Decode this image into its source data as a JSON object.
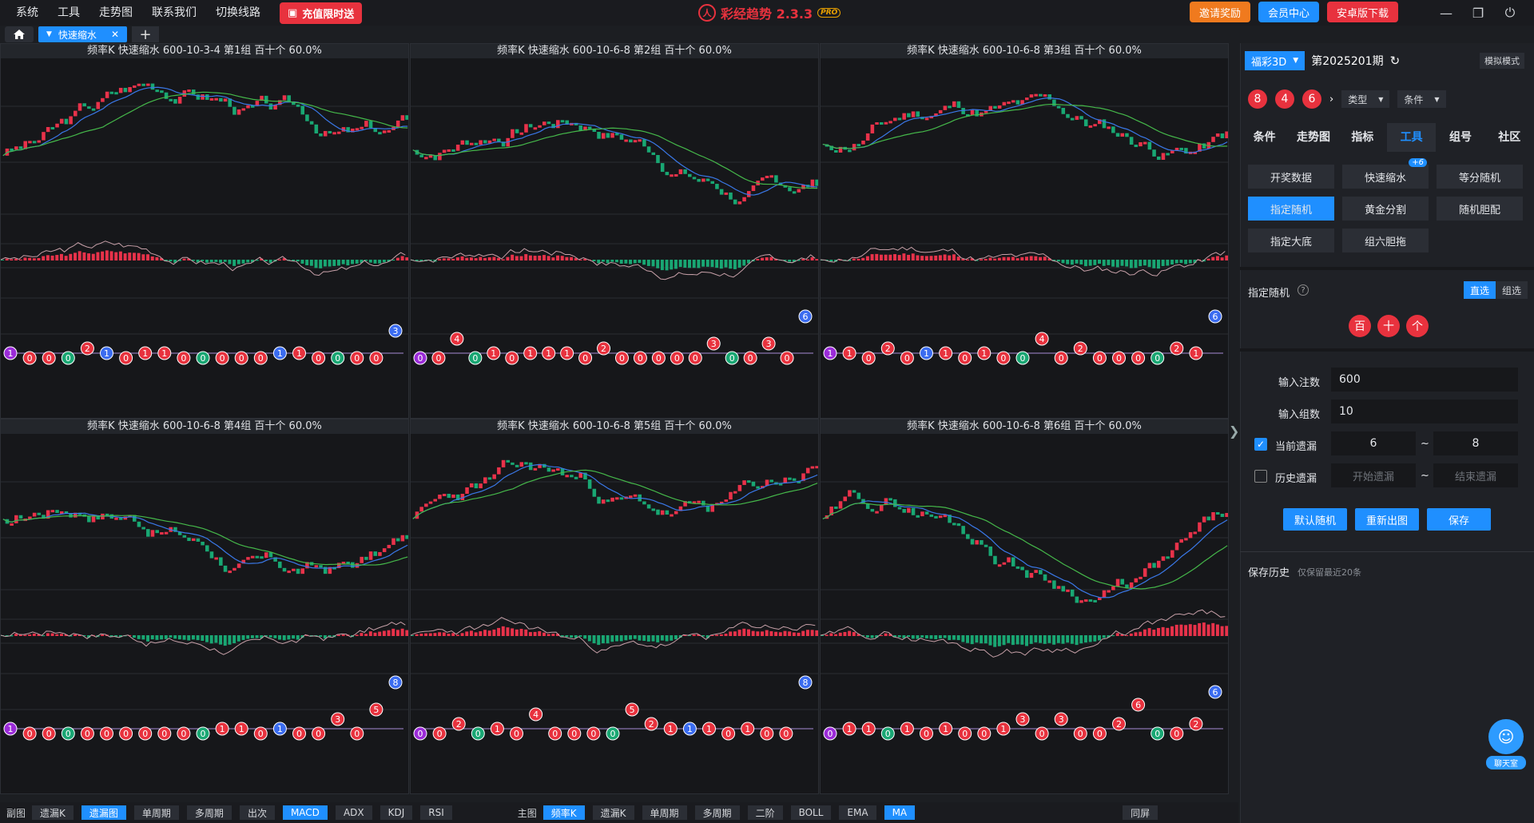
{
  "menu": [
    "系统",
    "工具",
    "走势图",
    "联系我们",
    "切换线路"
  ],
  "promo_label": "充值限时送",
  "brand": {
    "name": "彩经趋势 2.3.3",
    "pro": "PRO"
  },
  "top_buttons": {
    "invite": "邀请奖励",
    "member": "会员中心",
    "android": "安卓版下载"
  },
  "tab": {
    "label": "快速缩水"
  },
  "panels": [
    {
      "title": "频率K  快速缩水  600-10-3-4 第1组  百十个  60.0%",
      "seed": 3,
      "balls": [
        1,
        0,
        0,
        0,
        2,
        1,
        0,
        1,
        1,
        0,
        0,
        0,
        0,
        0,
        1,
        1,
        0,
        0,
        0,
        0,
        3
      ]
    },
    {
      "title": "频率K  快速缩水  600-10-6-8 第2组  百十个  60.0%",
      "seed": 7,
      "balls": [
        0,
        0,
        4,
        0,
        1,
        0,
        1,
        1,
        1,
        0,
        2,
        0,
        0,
        0,
        0,
        0,
        3,
        0,
        0,
        3,
        0,
        6
      ]
    },
    {
      "title": "频率K  快速缩水  600-10-6-8 第3组  百十个  60.0%",
      "seed": 11,
      "balls": [
        1,
        1,
        0,
        2,
        0,
        1,
        1,
        0,
        1,
        0,
        0,
        4,
        0,
        2,
        0,
        0,
        0,
        0,
        2,
        1,
        6
      ]
    },
    {
      "title": "频率K  快速缩水  600-10-6-8 第4组  百十个  60.0%",
      "seed": 17,
      "balls": [
        1,
        0,
        0,
        0,
        0,
        0,
        0,
        0,
        0,
        0,
        0,
        1,
        1,
        0,
        1,
        0,
        0,
        3,
        0,
        5,
        8
      ]
    },
    {
      "title": "频率K  快速缩水  600-10-6-8 第5组  百十个  60.0%",
      "seed": 23,
      "balls": [
        0,
        0,
        2,
        0,
        1,
        0,
        4,
        0,
        0,
        0,
        0,
        5,
        2,
        1,
        1,
        1,
        0,
        1,
        0,
        0,
        8
      ]
    },
    {
      "title": "频率K  快速缩水  600-10-6-8 第6组  百十个  60.0%",
      "seed": 29,
      "balls": [
        0,
        1,
        1,
        0,
        1,
        0,
        1,
        0,
        0,
        1,
        3,
        0,
        3,
        0,
        0,
        2,
        6,
        0,
        0,
        2,
        6
      ]
    }
  ],
  "bottom_bar": {
    "sub_label": "副图",
    "sub_buttons": [
      {
        "t": "遗漏K",
        "on": false
      },
      {
        "t": "遗漏图",
        "on": true
      },
      {
        "t": "单周期",
        "on": false
      },
      {
        "t": "多周期",
        "on": false
      },
      {
        "t": "出次",
        "on": false
      },
      {
        "t": "MACD",
        "on": true
      },
      {
        "t": "ADX",
        "on": false
      },
      {
        "t": "KDJ",
        "on": false
      },
      {
        "t": "RSI",
        "on": false
      }
    ],
    "main_label": "主图",
    "main_buttons": [
      {
        "t": "频率K",
        "on": true
      },
      {
        "t": "遗漏K",
        "on": false
      },
      {
        "t": "单周期",
        "on": false
      },
      {
        "t": "多周期",
        "on": false
      },
      {
        "t": "二阶",
        "on": false
      },
      {
        "t": "BOLL",
        "on": false
      },
      {
        "t": "EMA",
        "on": false
      },
      {
        "t": "MA",
        "on": true
      }
    ],
    "same_screen": "同屏"
  },
  "side": {
    "lottery": "福彩3D",
    "period": "第2025201期",
    "mode": "模拟模式",
    "balls": [
      "8",
      "4",
      "6"
    ],
    "type_dd": "类型",
    "cond_dd": "条件",
    "tabs": [
      {
        "t": "条件",
        "on": false
      },
      {
        "t": "走势图",
        "on": false
      },
      {
        "t": "指标",
        "on": false
      },
      {
        "t": "工具",
        "on": true
      },
      {
        "t": "组号",
        "on": false
      },
      {
        "t": "社区",
        "on": false
      }
    ],
    "tools": [
      {
        "t": "开奖数据",
        "on": false
      },
      {
        "t": "快速缩水",
        "on": false,
        "badge": "+6"
      },
      {
        "t": "等分随机",
        "on": false
      },
      {
        "t": "指定随机",
        "on": true
      },
      {
        "t": "黄金分割",
        "on": false
      },
      {
        "t": "随机胆配",
        "on": false
      },
      {
        "t": "指定大底",
        "on": false
      },
      {
        "t": "组六胆拖",
        "on": false
      }
    ],
    "random_title": "指定随机",
    "seg": [
      {
        "t": "直选",
        "on": true
      },
      {
        "t": "组选",
        "on": false
      }
    ],
    "positions": [
      "百",
      "十",
      "个"
    ],
    "bet_label": "输入注数",
    "bet_value": "600",
    "group_label": "输入组数",
    "group_value": "10",
    "cur_miss_label": "当前遗漏",
    "cur_from": "6",
    "cur_to": "8",
    "hist_miss_label": "历史遗漏",
    "hist_from_ph": "开始遗漏",
    "hist_to_ph": "结束遗漏",
    "tilde": "~",
    "actions": [
      "默认随机",
      "重新出图",
      "保存"
    ],
    "history_label": "保存历史",
    "history_hint": "仅保留最近20条",
    "chat": "聊天室"
  },
  "colors": {
    "accent": "#1f8fff",
    "red": "#e8323e",
    "green": "#19a773",
    "blue": "#3b6cf0",
    "purple": "#9b2bd8"
  }
}
